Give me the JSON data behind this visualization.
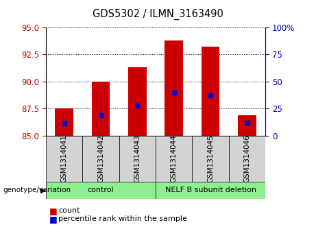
{
  "title": "GDS5302 / ILMN_3163490",
  "samples": [
    "GSM1314041",
    "GSM1314042",
    "GSM1314043",
    "GSM1314044",
    "GSM1314045",
    "GSM1314046"
  ],
  "bar_bottoms": [
    85,
    85,
    85,
    85,
    85,
    85
  ],
  "bar_tops": [
    87.5,
    90.0,
    91.3,
    93.8,
    93.2,
    86.9
  ],
  "percentile_vals": [
    86.1,
    86.9,
    87.8,
    89.0,
    88.7,
    86.2
  ],
  "ylim": [
    85,
    95
  ],
  "yticks_left": [
    85,
    87.5,
    90,
    92.5,
    95
  ],
  "yticks_right": [
    0,
    25,
    50,
    75,
    100
  ],
  "bar_color": "#cc0000",
  "dot_color": "#0000cc",
  "group1_label": "control",
  "group2_label": "NELF B subunit deletion",
  "group1_color": "#90ee90",
  "group2_color": "#90ee90",
  "left_axis_color": "#cc0000",
  "right_axis_color": "#0000cc",
  "legend_count_label": "count",
  "legend_percentile_label": "percentile rank within the sample",
  "genotype_label": "genotype/variation",
  "header_bg_color": "#d3d3d3",
  "bar_width": 0.5
}
